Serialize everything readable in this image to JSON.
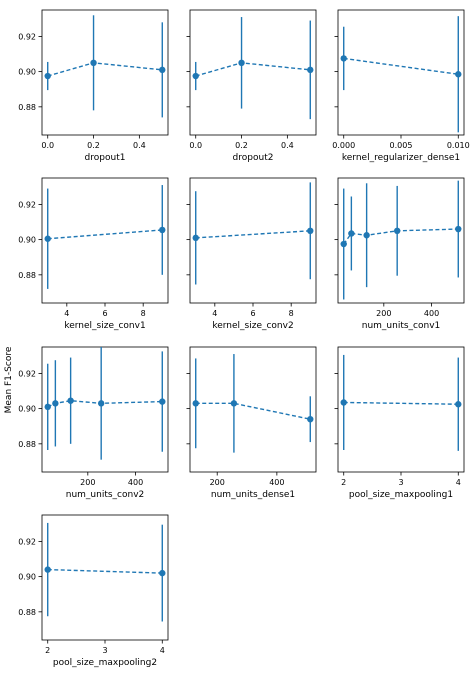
{
  "figure": {
    "ylabel": "Mean F1-Score"
  },
  "style": {
    "series_color": "#1f77b4",
    "axis_color": "#000000",
    "background": "#ffffff"
  },
  "chart_data": [
    {
      "type": "line",
      "title": "",
      "xlabel": "dropout1",
      "ylabel": "",
      "x": [
        0.0,
        0.2,
        0.5
      ],
      "y": [
        0.8975,
        0.905,
        0.901
      ],
      "err": [
        0.008,
        0.027,
        0.027
      ],
      "xlim": [
        -0.025,
        0.525
      ],
      "ylim": [
        0.864,
        0.935
      ],
      "xticks": [
        0.0,
        0.2,
        0.4
      ],
      "xtick_labels": [
        "0.0",
        "0.2",
        "0.4"
      ],
      "yticks": [
        0.88,
        0.9,
        0.92
      ],
      "ytick_labels": [
        "0.88",
        "0.90",
        "0.92"
      ],
      "show_ytick_labels": true
    },
    {
      "type": "line",
      "title": "",
      "xlabel": "dropout2",
      "ylabel": "",
      "x": [
        0.0,
        0.2,
        0.5
      ],
      "y": [
        0.8975,
        0.905,
        0.901
      ],
      "err": [
        0.008,
        0.026,
        0.028
      ],
      "xlim": [
        -0.025,
        0.525
      ],
      "ylim": [
        0.864,
        0.935
      ],
      "xticks": [
        0.0,
        0.2,
        0.4
      ],
      "xtick_labels": [
        "0.0",
        "0.2",
        "0.4"
      ],
      "yticks": [
        0.88,
        0.9,
        0.92
      ],
      "ytick_labels": [
        "0.88",
        "0.90",
        "0.92"
      ],
      "show_ytick_labels": false
    },
    {
      "type": "line",
      "title": "",
      "xlabel": "kernel_regularizer_dense1",
      "ylabel": "",
      "x": [
        0.0,
        0.01
      ],
      "y": [
        0.9075,
        0.8985
      ],
      "err": [
        0.018,
        0.033
      ],
      "xlim": [
        -0.0005,
        0.0105
      ],
      "ylim": [
        0.864,
        0.935
      ],
      "xticks": [
        0.0,
        0.005,
        0.01
      ],
      "xtick_labels": [
        "0.000",
        "0.005",
        "0.010"
      ],
      "yticks": [
        0.88,
        0.9,
        0.92
      ],
      "ytick_labels": [
        "0.88",
        "0.90",
        "0.92"
      ],
      "show_ytick_labels": false
    },
    {
      "type": "line",
      "title": "",
      "xlabel": "kernel_size_conv1",
      "ylabel": "",
      "x": [
        3,
        9
      ],
      "y": [
        0.9005,
        0.9055
      ],
      "err": [
        0.0285,
        0.0255
      ],
      "xlim": [
        2.7,
        9.3
      ],
      "ylim": [
        0.864,
        0.935
      ],
      "xticks": [
        4,
        6,
        8
      ],
      "xtick_labels": [
        "4",
        "6",
        "8"
      ],
      "yticks": [
        0.88,
        0.9,
        0.92
      ],
      "ytick_labels": [
        "0.88",
        "0.90",
        "0.92"
      ],
      "show_ytick_labels": true
    },
    {
      "type": "line",
      "title": "",
      "xlabel": "kernel_size_conv2",
      "ylabel": "",
      "x": [
        3,
        9
      ],
      "y": [
        0.901,
        0.905
      ],
      "err": [
        0.0265,
        0.0275
      ],
      "xlim": [
        2.7,
        9.3
      ],
      "ylim": [
        0.864,
        0.935
      ],
      "xticks": [
        4,
        6,
        8
      ],
      "xtick_labels": [
        "4",
        "6",
        "8"
      ],
      "yticks": [
        0.88,
        0.9,
        0.92
      ],
      "ytick_labels": [
        "0.88",
        "0.90",
        "0.92"
      ],
      "show_ytick_labels": false
    },
    {
      "type": "line",
      "title": "",
      "xlabel": "num_units_conv1",
      "ylabel": "",
      "x": [
        32,
        64,
        128,
        256,
        512
      ],
      "y": [
        0.8975,
        0.9035,
        0.9025,
        0.905,
        0.906
      ],
      "err": [
        0.0315,
        0.021,
        0.0295,
        0.0255,
        0.0275
      ],
      "xlim": [
        8,
        536
      ],
      "ylim": [
        0.864,
        0.935
      ],
      "xticks": [
        200,
        400
      ],
      "xtick_labels": [
        "200",
        "400"
      ],
      "yticks": [
        0.88,
        0.9,
        0.92
      ],
      "ytick_labels": [
        "0.88",
        "0.90",
        "0.92"
      ],
      "show_ytick_labels": false
    },
    {
      "type": "line",
      "title": "",
      "xlabel": "num_units_conv2",
      "ylabel": "",
      "x": [
        32,
        64,
        128,
        256,
        512
      ],
      "y": [
        0.901,
        0.903,
        0.9045,
        0.903,
        0.904
      ],
      "err": [
        0.0245,
        0.0245,
        0.0245,
        0.032,
        0.0285
      ],
      "xlim": [
        8,
        536
      ],
      "ylim": [
        0.864,
        0.935
      ],
      "xticks": [
        200,
        400
      ],
      "xtick_labels": [
        "200",
        "400"
      ],
      "yticks": [
        0.88,
        0.9,
        0.92
      ],
      "ytick_labels": [
        "0.88",
        "0.90",
        "0.92"
      ],
      "show_ytick_labels": true
    },
    {
      "type": "line",
      "title": "",
      "xlabel": "num_units_dense1",
      "ylabel": "",
      "x": [
        128,
        256,
        512
      ],
      "y": [
        0.903,
        0.903,
        0.894
      ],
      "err": [
        0.0255,
        0.028,
        0.013
      ],
      "xlim": [
        108.8,
        531.2
      ],
      "ylim": [
        0.864,
        0.935
      ],
      "xticks": [
        200,
        400
      ],
      "xtick_labels": [
        "200",
        "400"
      ],
      "yticks": [
        0.88,
        0.9,
        0.92
      ],
      "ytick_labels": [
        "0.88",
        "0.90",
        "0.92"
      ],
      "show_ytick_labels": false
    },
    {
      "type": "line",
      "title": "",
      "xlabel": "pool_size_maxpooling1",
      "ylabel": "",
      "x": [
        2,
        4
      ],
      "y": [
        0.9035,
        0.9025
      ],
      "err": [
        0.027,
        0.0265
      ],
      "xlim": [
        1.9,
        4.1
      ],
      "ylim": [
        0.864,
        0.935
      ],
      "xticks": [
        2,
        3,
        4
      ],
      "xtick_labels": [
        "2",
        "3",
        "4"
      ],
      "yticks": [
        0.88,
        0.9,
        0.92
      ],
      "ytick_labels": [
        "0.88",
        "0.90",
        "0.92"
      ],
      "show_ytick_labels": false
    },
    {
      "type": "line",
      "title": "",
      "xlabel": "pool_size_maxpooling2",
      "ylabel": "",
      "x": [
        2,
        4
      ],
      "y": [
        0.904,
        0.902
      ],
      "err": [
        0.0265,
        0.0275
      ],
      "xlim": [
        1.9,
        4.1
      ],
      "ylim": [
        0.864,
        0.935
      ],
      "xticks": [
        2,
        3,
        4
      ],
      "xtick_labels": [
        "2",
        "3",
        "4"
      ],
      "yticks": [
        0.88,
        0.9,
        0.92
      ],
      "ytick_labels": [
        "0.88",
        "0.90",
        "0.92"
      ],
      "show_ytick_labels": true
    }
  ]
}
